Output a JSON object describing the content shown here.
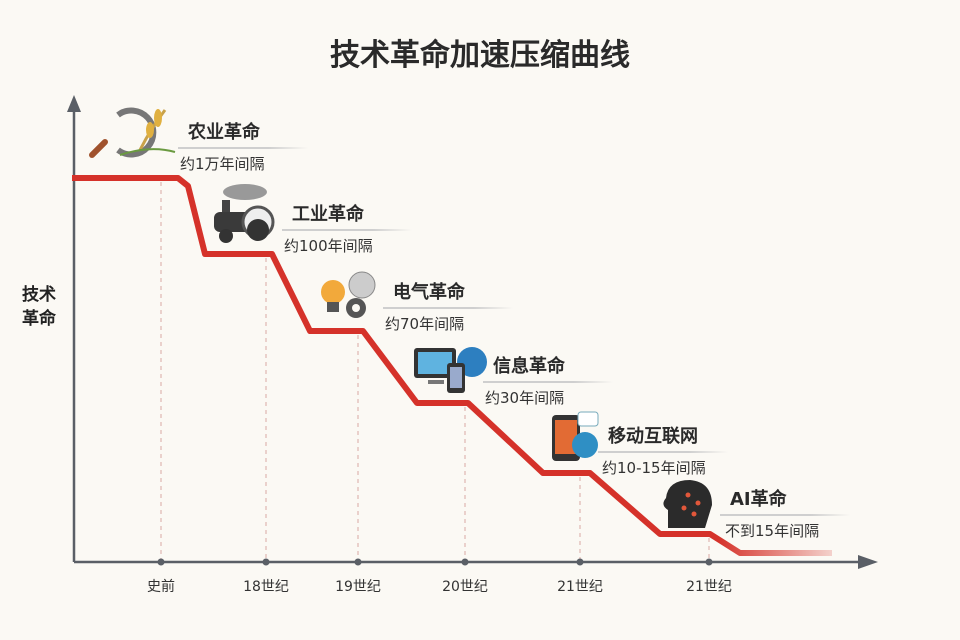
{
  "title": "技术革命加速压缩曲线",
  "y_axis_label": "技术\n革命",
  "x_ticks": [
    "史前",
    "18世纪",
    "19世纪",
    "20世纪",
    "21世纪",
    "21世纪"
  ],
  "line_color": "#d5322a",
  "revolutions": [
    {
      "name": "农业革命",
      "gap": "约1万年间隔",
      "icon": "sickle-wheat-icon"
    },
    {
      "name": "工业革命",
      "gap": "约100年间隔",
      "icon": "steam-locomotive-icon"
    },
    {
      "name": "电气革命",
      "gap": "约70年间隔",
      "icon": "lightbulb-gear-icon"
    },
    {
      "name": "信息革命",
      "gap": "约30年间隔",
      "icon": "computer-globe-icon"
    },
    {
      "name": "移动互联网",
      "gap": "约10-15年间隔",
      "icon": "smartphone-globe-icon"
    },
    {
      "name": "AI革命",
      "gap": "不到15年间隔",
      "icon": "ai-head-icon"
    }
  ]
}
